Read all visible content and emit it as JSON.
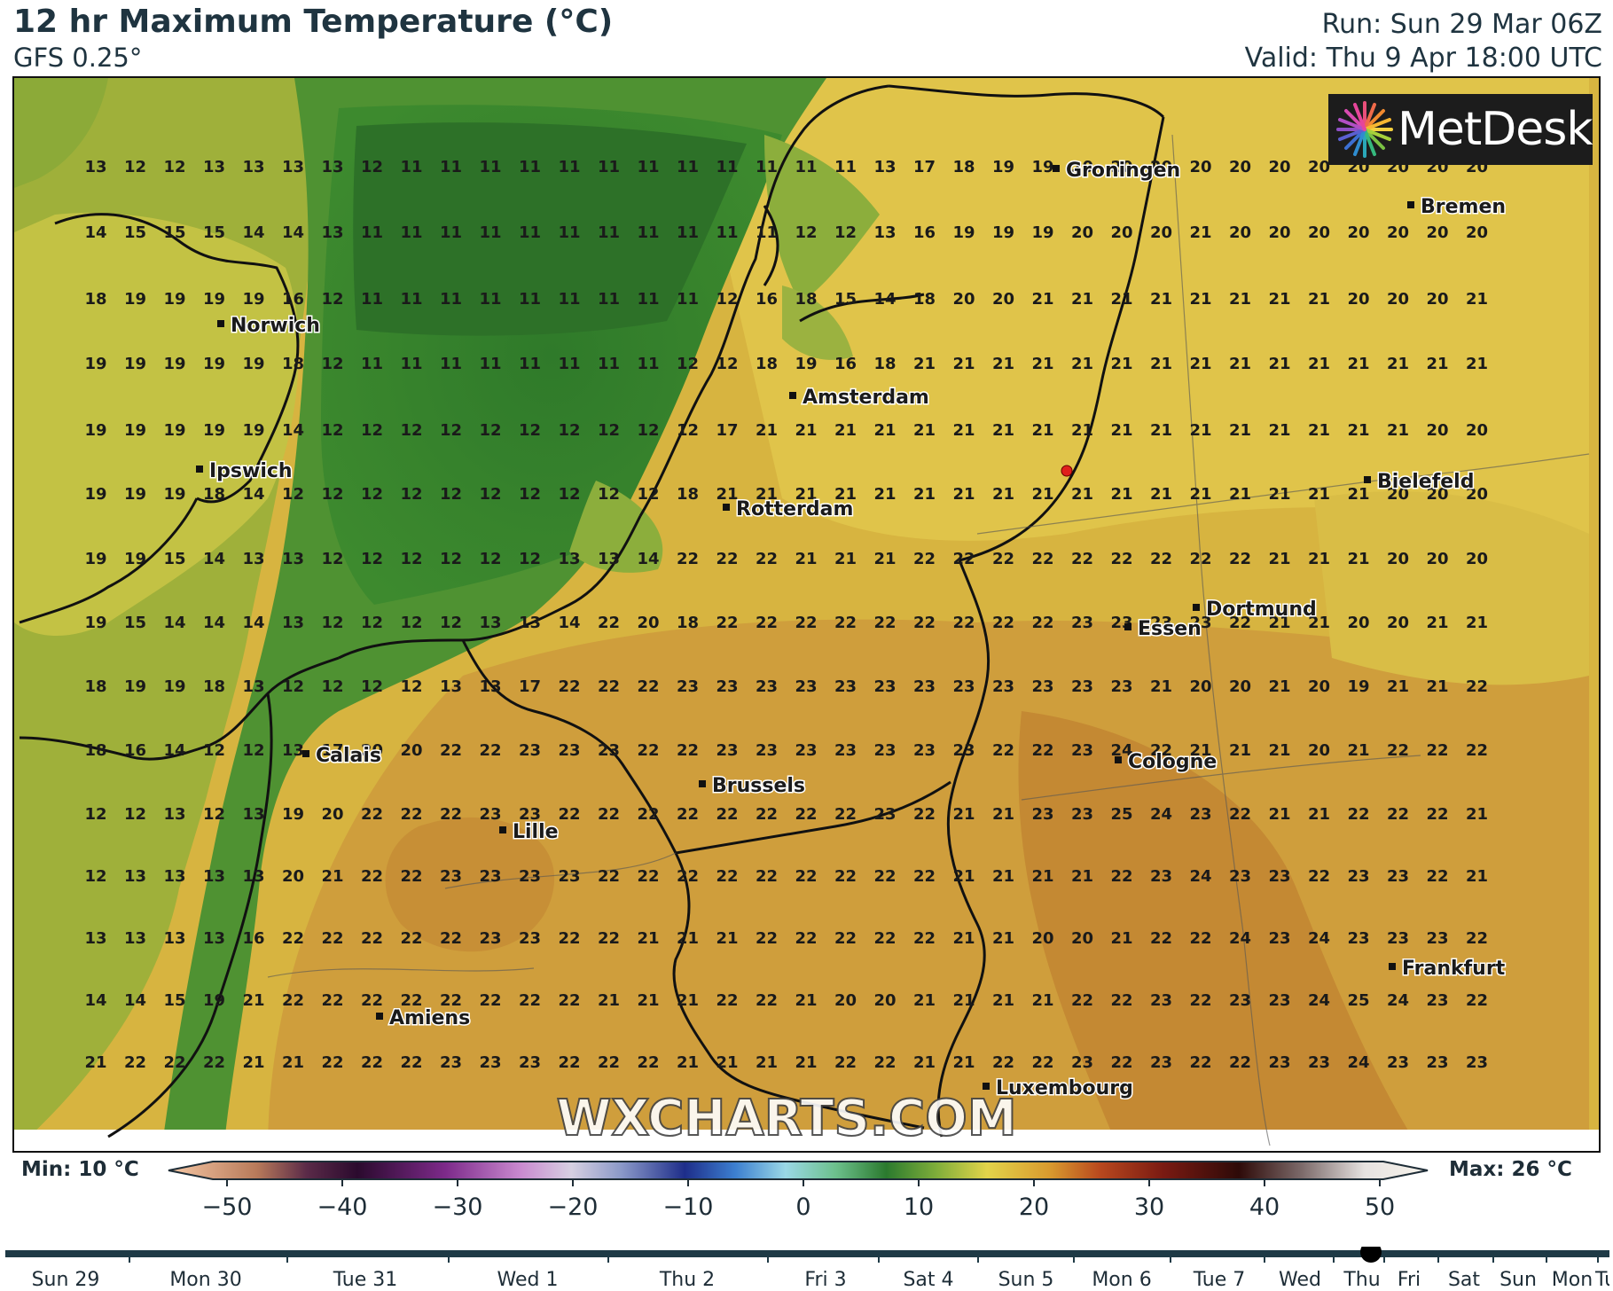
{
  "header": {
    "title": "12 hr Maximum Temperature (°C)",
    "model": "GFS 0.25°",
    "run": "Run: Sun 29 Mar 06Z",
    "valid": "Valid: Thu 9 Apr 18:00 UTC"
  },
  "logo": {
    "text": "MetDesk",
    "icon": "pinwheel-logo-icon"
  },
  "watermark": "WXCHARTS.COM",
  "cities": [
    {
      "name": "Groningen"
    },
    {
      "name": "Bremen"
    },
    {
      "name": "Norwich"
    },
    {
      "name": "Amsterdam"
    },
    {
      "name": "Ipswich"
    },
    {
      "name": "Bielefeld"
    },
    {
      "name": "Rotterdam"
    },
    {
      "name": "Dortmund"
    },
    {
      "name": "Essen"
    },
    {
      "name": "Calais"
    },
    {
      "name": "Cologne"
    },
    {
      "name": "Brussels"
    },
    {
      "name": "Lille"
    },
    {
      "name": "Frankfurt"
    },
    {
      "name": "Amiens"
    },
    {
      "name": "Luxembourg"
    }
  ],
  "grid_values": [
    [
      13,
      12,
      12,
      13,
      13,
      13,
      13,
      12,
      11,
      11,
      11,
      11,
      11,
      11,
      11,
      11,
      11,
      11,
      11,
      11,
      13,
      17,
      18,
      19,
      19,
      20,
      20,
      20,
      20,
      20,
      20,
      20,
      20,
      20,
      20,
      20
    ],
    [
      14,
      15,
      15,
      15,
      14,
      14,
      13,
      11,
      11,
      11,
      11,
      11,
      11,
      11,
      11,
      11,
      11,
      11,
      12,
      12,
      13,
      16,
      19,
      19,
      19,
      20,
      20,
      20,
      21,
      20,
      20,
      20,
      20,
      20,
      20,
      20
    ],
    [
      18,
      19,
      19,
      19,
      19,
      16,
      12,
      11,
      11,
      11,
      11,
      11,
      11,
      11,
      11,
      11,
      12,
      16,
      18,
      15,
      14,
      18,
      20,
      20,
      21,
      21,
      21,
      21,
      21,
      21,
      21,
      21,
      20,
      20,
      20,
      21
    ],
    [
      19,
      19,
      19,
      19,
      19,
      18,
      12,
      11,
      11,
      11,
      11,
      11,
      11,
      11,
      11,
      12,
      12,
      18,
      19,
      16,
      18,
      21,
      21,
      21,
      21,
      21,
      21,
      21,
      21,
      21,
      21,
      21,
      21,
      21,
      21,
      21
    ],
    [
      19,
      19,
      19,
      19,
      19,
      14,
      12,
      12,
      12,
      12,
      12,
      12,
      12,
      12,
      12,
      12,
      17,
      21,
      21,
      21,
      21,
      21,
      21,
      21,
      21,
      21,
      21,
      21,
      21,
      21,
      21,
      21,
      21,
      21,
      20,
      20
    ],
    [
      19,
      19,
      19,
      18,
      14,
      12,
      12,
      12,
      12,
      12,
      12,
      12,
      12,
      12,
      12,
      18,
      21,
      21,
      21,
      21,
      21,
      21,
      21,
      21,
      21,
      21,
      21,
      21,
      21,
      21,
      21,
      21,
      21,
      20,
      20,
      20
    ],
    [
      19,
      19,
      15,
      14,
      13,
      13,
      12,
      12,
      12,
      12,
      12,
      12,
      13,
      13,
      14,
      22,
      22,
      22,
      21,
      21,
      21,
      22,
      22,
      22,
      22,
      22,
      22,
      22,
      22,
      22,
      21,
      21,
      21,
      20,
      20,
      20
    ],
    [
      19,
      15,
      14,
      14,
      14,
      13,
      12,
      12,
      12,
      12,
      13,
      13,
      14,
      22,
      20,
      18,
      22,
      22,
      22,
      22,
      22,
      22,
      22,
      22,
      22,
      23,
      23,
      23,
      23,
      22,
      21,
      21,
      20,
      20,
      21,
      21
    ],
    [
      18,
      19,
      19,
      18,
      13,
      12,
      12,
      12,
      12,
      13,
      13,
      17,
      22,
      22,
      22,
      23,
      23,
      23,
      23,
      23,
      23,
      23,
      23,
      23,
      23,
      23,
      23,
      21,
      20,
      20,
      21,
      20,
      19,
      21,
      21,
      22
    ],
    [
      18,
      16,
      14,
      12,
      12,
      13,
      17,
      20,
      20,
      22,
      22,
      23,
      23,
      23,
      22,
      22,
      23,
      23,
      23,
      23,
      23,
      23,
      23,
      22,
      22,
      23,
      24,
      22,
      21,
      21,
      21,
      20,
      21,
      22,
      22,
      22
    ],
    [
      12,
      12,
      13,
      12,
      13,
      19,
      20,
      22,
      22,
      22,
      23,
      23,
      22,
      22,
      22,
      22,
      22,
      22,
      22,
      22,
      23,
      22,
      21,
      21,
      23,
      23,
      25,
      24,
      23,
      22,
      21,
      21,
      22,
      22,
      22,
      21
    ],
    [
      12,
      13,
      13,
      13,
      13,
      20,
      21,
      22,
      22,
      23,
      23,
      23,
      23,
      22,
      22,
      22,
      22,
      22,
      22,
      22,
      22,
      22,
      21,
      21,
      21,
      21,
      22,
      23,
      24,
      23,
      23,
      22,
      23,
      23,
      22,
      21
    ],
    [
      13,
      13,
      13,
      13,
      16,
      22,
      22,
      22,
      22,
      22,
      23,
      23,
      22,
      22,
      21,
      21,
      21,
      22,
      22,
      22,
      22,
      22,
      21,
      21,
      20,
      20,
      21,
      22,
      22,
      24,
      23,
      24,
      23,
      23,
      23,
      22
    ],
    [
      14,
      14,
      15,
      19,
      21,
      22,
      22,
      22,
      22,
      22,
      22,
      22,
      22,
      21,
      21,
      21,
      22,
      22,
      21,
      20,
      20,
      21,
      21,
      21,
      21,
      22,
      22,
      23,
      22,
      23,
      23,
      24,
      25,
      24,
      23,
      22
    ],
    [
      21,
      22,
      22,
      22,
      21,
      21,
      22,
      22,
      22,
      23,
      23,
      23,
      22,
      22,
      22,
      21,
      21,
      21,
      21,
      22,
      22,
      21,
      21,
      22,
      22,
      23,
      22,
      23,
      22,
      22,
      23,
      23,
      24,
      23,
      23,
      23
    ]
  ],
  "legend": {
    "min_label": "Min: 10 °C",
    "max_label": "Max: 26 °C",
    "ticks": [
      "−50",
      "−40",
      "−30",
      "−20",
      "−10",
      "0",
      "10",
      "20",
      "30",
      "40",
      "50"
    ]
  },
  "timeline": {
    "labels": [
      "Sun 29",
      "Mon 30",
      "Tue 31",
      "Wed 1",
      "Thu 2",
      "Fri 3",
      "Sat 4",
      "Sun 5",
      "Mon 6",
      "Tue 7",
      "Wed",
      "Thu",
      "Fri",
      "Sat",
      "Sun",
      "Mon",
      "Tu"
    ],
    "current": "Thu"
  }
}
